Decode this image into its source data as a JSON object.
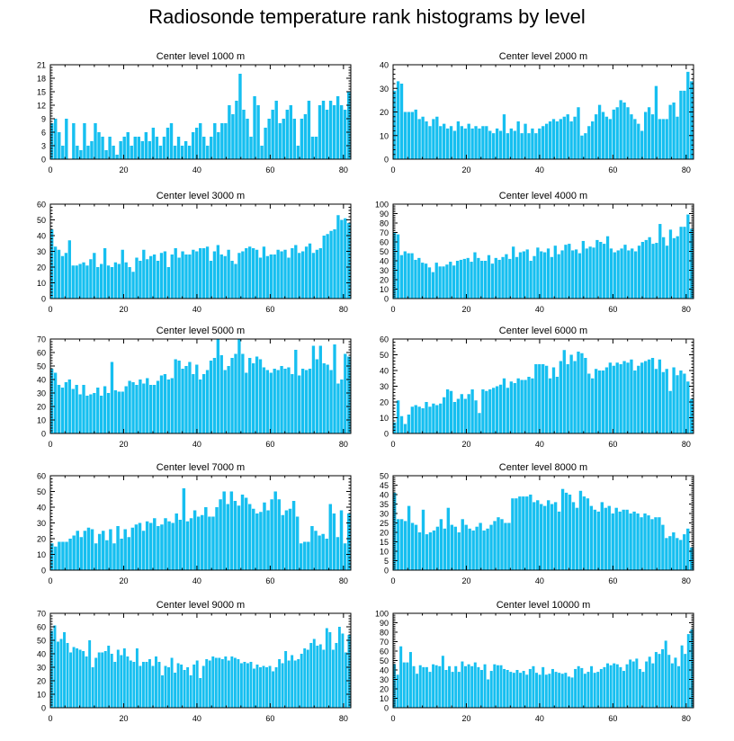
{
  "title": "Radiosonde temperature rank histograms by level",
  "colors": {
    "bar": "#16bff0",
    "bar_edge": "#ffffff",
    "axis": "#000000"
  },
  "chart_data": [
    {
      "type": "bar",
      "title": "Center level 1000 m",
      "x_start": 0,
      "ylim": [
        0,
        21
      ],
      "yticks": [
        0,
        3,
        6,
        9,
        12,
        15,
        18,
        21
      ],
      "xticks": [
        0,
        20,
        40,
        60,
        80
      ],
      "values": [
        8,
        9,
        6,
        3,
        9,
        0,
        8,
        3,
        2,
        8,
        3,
        4,
        8,
        6,
        5,
        2,
        5,
        3,
        1,
        4,
        5,
        6,
        3,
        5,
        5,
        4,
        6,
        4,
        7,
        5,
        3,
        5,
        7,
        8,
        3,
        5,
        3,
        4,
        3,
        6,
        7,
        8,
        5,
        3,
        5,
        8,
        6,
        8,
        8,
        12,
        10,
        13,
        19,
        11,
        9,
        5,
        14,
        12,
        3,
        7,
        9,
        11,
        13,
        8,
        9,
        11,
        12,
        9,
        3,
        9,
        10,
        13,
        5,
        5,
        12,
        13,
        11,
        13,
        12,
        14,
        12,
        11,
        15
      ],
      "xlabel": "",
      "ylabel": ""
    },
    {
      "type": "bar",
      "title": "Center level 2000 m",
      "x_start": 0,
      "ylim": [
        0,
        40
      ],
      "yticks": [
        0,
        10,
        20,
        30,
        40
      ],
      "xticks": [
        0,
        20,
        40,
        60,
        80
      ],
      "values": [
        29,
        33,
        32,
        20,
        20,
        20,
        21,
        17,
        18,
        16,
        14,
        17,
        18,
        14,
        15,
        13,
        14,
        12,
        16,
        14,
        13,
        15,
        13,
        14,
        13,
        14,
        14,
        12,
        11,
        13,
        12,
        19,
        11,
        13,
        12,
        16,
        11,
        15,
        11,
        13,
        11,
        13,
        14,
        15,
        16,
        17,
        16,
        17,
        18,
        19,
        16,
        18,
        22,
        10,
        11,
        14,
        16,
        19,
        23,
        20,
        18,
        17,
        21,
        22,
        25,
        24,
        22,
        19,
        17,
        15,
        12,
        20,
        22,
        19,
        31,
        17,
        17,
        17,
        23,
        24,
        18,
        29,
        29,
        37,
        33
      ],
      "xlabel": "",
      "ylabel": ""
    },
    {
      "type": "bar",
      "title": "Center level 3000 m",
      "x_start": 0,
      "ylim": [
        0,
        60
      ],
      "yticks": [
        0,
        10,
        20,
        30,
        40,
        50,
        60
      ],
      "xticks": [
        0,
        20,
        40,
        60,
        80
      ],
      "values": [
        44,
        33,
        31,
        27,
        29,
        37,
        21,
        21,
        22,
        23,
        21,
        25,
        29,
        20,
        22,
        32,
        21,
        20,
        23,
        22,
        31,
        23,
        20,
        17,
        26,
        24,
        31,
        25,
        27,
        28,
        24,
        29,
        30,
        20,
        28,
        32,
        26,
        30,
        28,
        28,
        31,
        30,
        32,
        32,
        33,
        24,
        30,
        34,
        28,
        27,
        31,
        24,
        22,
        29,
        30,
        32,
        33,
        32,
        31,
        26,
        33,
        27,
        28,
        28,
        31,
        30,
        31,
        26,
        32,
        34,
        29,
        30,
        33,
        35,
        29,
        31,
        32,
        40,
        41,
        43,
        44,
        53,
        50,
        51,
        48
      ],
      "xlabel": "",
      "ylabel": ""
    },
    {
      "type": "bar",
      "title": "Center level 4000 m",
      "x_start": 0,
      "ylim": [
        0,
        100
      ],
      "yticks": [
        0,
        10,
        20,
        30,
        40,
        50,
        60,
        70,
        80,
        90,
        100
      ],
      "xticks": [
        0,
        20,
        40,
        60,
        80
      ],
      "values": [
        70,
        68,
        46,
        50,
        48,
        48,
        41,
        43,
        38,
        37,
        33,
        28,
        38,
        34,
        34,
        36,
        39,
        35,
        40,
        41,
        42,
        43,
        39,
        49,
        43,
        40,
        40,
        46,
        37,
        43,
        41,
        44,
        47,
        42,
        55,
        44,
        49,
        50,
        52,
        40,
        45,
        54,
        50,
        49,
        53,
        44,
        56,
        47,
        51,
        57,
        58,
        51,
        52,
        48,
        61,
        53,
        55,
        54,
        62,
        60,
        58,
        66,
        53,
        49,
        51,
        53,
        57,
        51,
        53,
        50,
        56,
        60,
        62,
        65,
        58,
        59,
        79,
        65,
        56,
        73,
        64,
        66,
        76,
        76,
        89,
        74
      ],
      "xlabel": "",
      "ylabel": ""
    },
    {
      "type": "bar",
      "title": "Center level 5000 m",
      "x_start": 0,
      "ylim": [
        0,
        70
      ],
      "yticks": [
        0,
        10,
        20,
        30,
        40,
        50,
        60,
        70
      ],
      "xticks": [
        0,
        20,
        40,
        60,
        80
      ],
      "values": [
        48,
        45,
        36,
        34,
        38,
        40,
        33,
        36,
        29,
        36,
        28,
        29,
        30,
        34,
        28,
        35,
        30,
        53,
        32,
        31,
        31,
        35,
        39,
        38,
        36,
        40,
        37,
        41,
        36,
        36,
        39,
        43,
        44,
        40,
        41,
        55,
        54,
        48,
        50,
        53,
        44,
        51,
        40,
        44,
        47,
        54,
        56,
        71,
        58,
        47,
        50,
        56,
        59,
        71,
        59,
        45,
        56,
        52,
        57,
        55,
        49,
        47,
        45,
        48,
        47,
        50,
        48,
        49,
        44,
        62,
        43,
        48,
        47,
        48,
        65,
        55,
        65,
        52,
        51,
        47,
        66,
        37,
        40,
        59,
        57
      ],
      "xlabel": "",
      "ylabel": ""
    },
    {
      "type": "bar",
      "title": "Center level 6000 m",
      "x_start": 0,
      "ylim": [
        0,
        60
      ],
      "yticks": [
        0,
        10,
        20,
        30,
        40,
        50,
        60
      ],
      "xticks": [
        0,
        20,
        40,
        60,
        80
      ],
      "values": [
        7,
        21,
        11,
        6,
        12,
        17,
        18,
        17,
        16,
        20,
        17,
        19,
        18,
        19,
        23,
        28,
        27,
        20,
        22,
        25,
        22,
        25,
        28,
        21,
        13,
        28,
        27,
        28,
        29,
        30,
        31,
        35,
        29,
        33,
        32,
        35,
        34,
        34,
        36,
        35,
        44,
        44,
        44,
        43,
        35,
        42,
        36,
        46,
        53,
        44,
        50,
        46,
        52,
        51,
        48,
        38,
        35,
        41,
        40,
        40,
        42,
        45,
        43,
        45,
        44,
        46,
        45,
        47,
        40,
        43,
        45,
        46,
        47,
        48,
        41,
        47,
        39,
        41,
        27,
        42,
        37,
        40,
        38,
        33,
        22
      ],
      "xlabel": "",
      "ylabel": ""
    },
    {
      "type": "bar",
      "title": "Center level 7000 m",
      "x_start": 0,
      "ylim": [
        0,
        60
      ],
      "yticks": [
        0,
        10,
        20,
        30,
        40,
        50,
        60
      ],
      "xticks": [
        0,
        20,
        40,
        60,
        80
      ],
      "values": [
        17,
        15,
        18,
        18,
        18,
        20,
        22,
        25,
        21,
        25,
        27,
        26,
        17,
        23,
        25,
        19,
        26,
        17,
        28,
        20,
        26,
        21,
        27,
        29,
        30,
        25,
        31,
        30,
        33,
        28,
        29,
        33,
        31,
        30,
        36,
        32,
        52,
        31,
        33,
        38,
        34,
        35,
        40,
        34,
        34,
        40,
        45,
        50,
        42,
        50,
        44,
        41,
        48,
        46,
        42,
        39,
        36,
        37,
        43,
        38,
        45,
        50,
        45,
        35,
        38,
        39,
        44,
        34,
        17,
        18,
        18,
        28,
        25,
        22,
        23,
        20,
        42,
        36,
        21,
        38,
        17,
        36
      ],
      "xlabel": "",
      "ylabel": ""
    },
    {
      "type": "bar",
      "title": "Center level 8000 m",
      "x_start": 0,
      "ylim": [
        0,
        50
      ],
      "yticks": [
        0,
        5,
        10,
        15,
        20,
        25,
        30,
        35,
        40,
        45,
        50
      ],
      "xticks": [
        0,
        20,
        40,
        60,
        80
      ],
      "values": [
        41,
        27,
        27,
        26,
        34,
        25,
        24,
        20,
        32,
        19,
        20,
        21,
        23,
        27,
        22,
        33,
        24,
        23,
        20,
        27,
        24,
        22,
        21,
        23,
        25,
        21,
        22,
        24,
        26,
        28,
        27,
        25,
        25,
        38,
        38,
        39,
        39,
        39,
        40,
        36,
        37,
        35,
        34,
        37,
        35,
        36,
        31,
        43,
        41,
        40,
        36,
        33,
        42,
        39,
        38,
        34,
        32,
        31,
        36,
        33,
        34,
        30,
        33,
        31,
        32,
        32,
        30,
        31,
        30,
        28,
        30,
        29,
        27,
        28,
        28,
        24,
        17,
        18,
        20,
        17,
        16,
        19,
        22,
        12
      ],
      "xlabel": "",
      "ylabel": ""
    },
    {
      "type": "bar",
      "title": "Center level 9000 m",
      "x_start": 0,
      "ylim": [
        0,
        70
      ],
      "yticks": [
        0,
        10,
        20,
        30,
        40,
        50,
        60,
        70
      ],
      "xticks": [
        0,
        20,
        40,
        60,
        80
      ],
      "values": [
        57,
        61,
        49,
        51,
        56,
        48,
        41,
        45,
        44,
        43,
        42,
        38,
        50,
        30,
        37,
        41,
        41,
        42,
        46,
        40,
        34,
        43,
        39,
        44,
        38,
        35,
        34,
        44,
        31,
        34,
        34,
        36,
        31,
        38,
        34,
        24,
        31,
        30,
        37,
        26,
        33,
        32,
        28,
        30,
        24,
        32,
        35,
        22,
        31,
        36,
        35,
        38,
        37,
        37,
        36,
        38,
        35,
        38,
        37,
        36,
        33,
        34,
        33,
        34,
        29,
        32,
        30,
        31,
        30,
        31,
        27,
        30,
        36,
        33,
        42,
        35,
        39,
        35,
        36,
        40,
        44,
        43,
        48,
        51,
        46,
        47,
        43,
        59,
        56,
        43,
        48,
        60,
        55,
        41,
        54
      ],
      "xlabel": "",
      "ylabel": ""
    },
    {
      "type": "bar",
      "title": "Center level 10000 m",
      "x_start": 0,
      "ylim": [
        0,
        100
      ],
      "yticks": [
        0,
        10,
        20,
        30,
        40,
        50,
        60,
        70,
        80,
        90,
        100
      ],
      "xticks": [
        0,
        20,
        40,
        60,
        80
      ],
      "values": [
        46,
        35,
        65,
        48,
        48,
        59,
        44,
        36,
        45,
        43,
        43,
        38,
        46,
        45,
        44,
        55,
        40,
        44,
        38,
        44,
        38,
        49,
        44,
        46,
        44,
        48,
        43,
        40,
        46,
        30,
        39,
        46,
        45,
        45,
        41,
        40,
        38,
        37,
        40,
        37,
        39,
        35,
        41,
        44,
        37,
        35,
        43,
        35,
        36,
        41,
        38,
        37,
        36,
        37,
        33,
        32,
        41,
        44,
        42,
        36,
        38,
        44,
        37,
        38,
        41,
        43,
        47,
        45,
        47,
        46,
        43,
        39,
        46,
        51,
        49,
        52,
        41,
        38,
        49,
        54,
        47,
        59,
        57,
        62,
        71,
        56,
        47,
        53,
        44,
        66,
        57,
        78,
        83
      ],
      "xlabel": "",
      "ylabel": ""
    }
  ]
}
